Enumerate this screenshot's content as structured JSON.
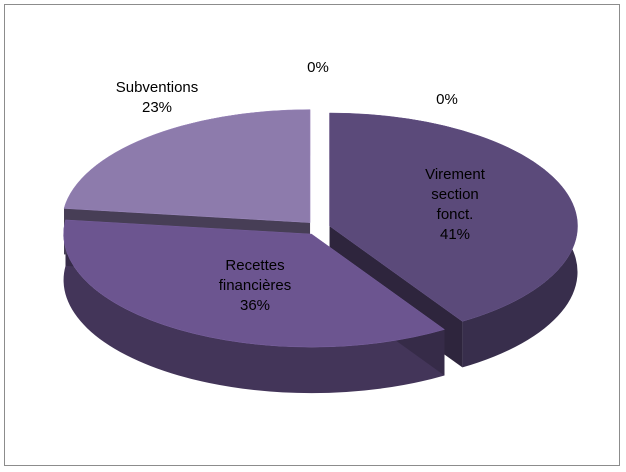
{
  "chart_data": {
    "type": "pie",
    "categories": [
      "Virement section fonct.",
      "Recettes financières",
      "Subventions",
      null,
      null
    ],
    "values": [
      41,
      36,
      23,
      0,
      0
    ],
    "value_labels": [
      "41%",
      "36%",
      "23%",
      "0%",
      "0%"
    ],
    "colors": [
      "#5b4a7a",
      "#6c5590",
      "#8d7bac",
      "#5b4a7a",
      "#5b4a7a"
    ]
  }
}
